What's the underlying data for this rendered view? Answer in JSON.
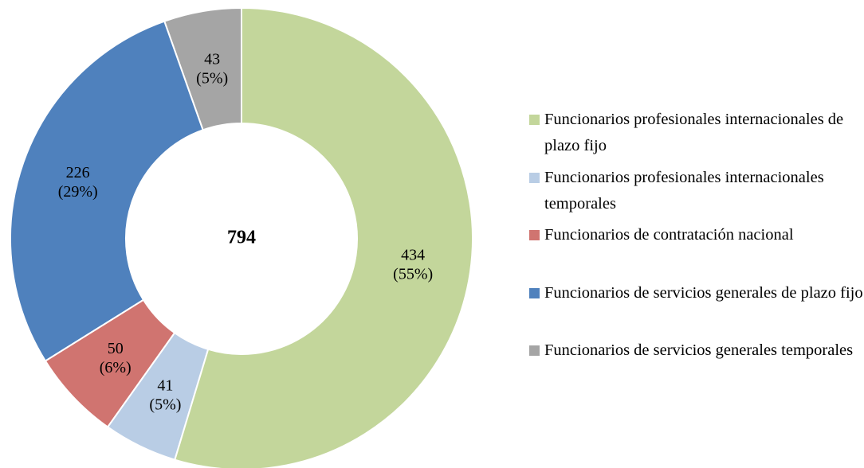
{
  "chart_data": {
    "type": "donut",
    "total": 794,
    "categories": [
      "Funcionarios profesionales internacionales de plazo fijo",
      "Funcionarios profesionales internacionales temporales",
      "Funcionarios de contratación nacional",
      "Funcionarios de servicios generales de plazo fijo",
      "Funcionarios de servicios generales temporales"
    ],
    "values": [
      434,
      41,
      50,
      226,
      43
    ],
    "value_labels": [
      "434 (55%)",
      "41 (5%)",
      "50 (6%)",
      "226 (29%)",
      "43 (5%)"
    ],
    "colors": [
      "#c3d69b",
      "#b9cde5",
      "#d07470",
      "#4f81bd",
      "#a5a5a5"
    ],
    "legend": "right"
  }
}
